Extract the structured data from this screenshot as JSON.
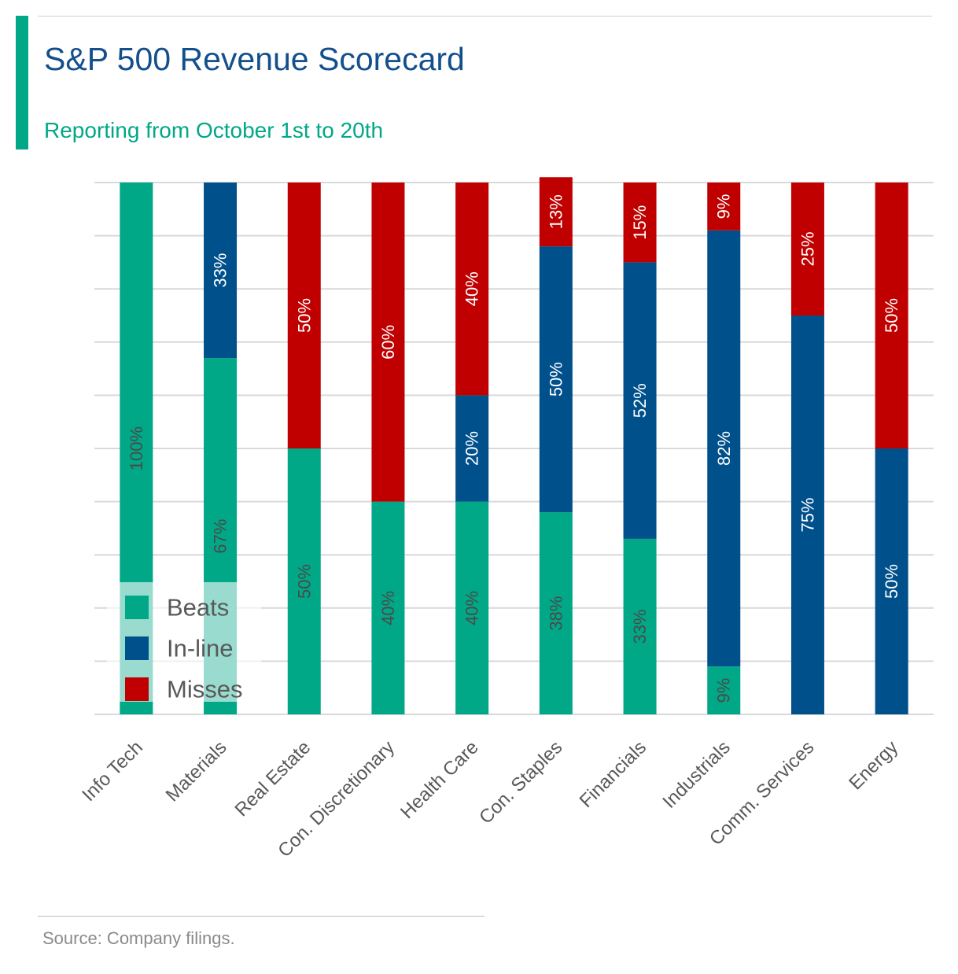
{
  "header": {
    "title": "S&P 500 Revenue Scorecard",
    "subtitle": "Reporting from October 1st to 20th"
  },
  "footer": {
    "source": "Source: Company filings."
  },
  "colors": {
    "beats": "#00a887",
    "inline": "#00508c",
    "misses": "#c00000",
    "grid": "#d9d9d9",
    "axis_text": "#595959"
  },
  "chart_data": {
    "type": "bar",
    "stacked": true,
    "categories": [
      "Info Tech",
      "Materials",
      "Real Estate",
      "Con. Discretionary",
      "Health Care",
      "Con. Staples",
      "Financials",
      "Industrials",
      "Comm. Services",
      "Energy"
    ],
    "series": [
      {
        "name": "Beats",
        "values": [
          100,
          67,
          50,
          40,
          40,
          38,
          33,
          9,
          0,
          0
        ],
        "labels": [
          "100%",
          "67%",
          "50%",
          "40%",
          "40%",
          "38%",
          "33%",
          "9%",
          "",
          ""
        ]
      },
      {
        "name": "In-line",
        "values": [
          0,
          33,
          0,
          0,
          20,
          50,
          52,
          82,
          75,
          50
        ],
        "labels": [
          "",
          "33%",
          "",
          "",
          "20%",
          "50%",
          "52%",
          "82%",
          "75%",
          "50%"
        ]
      },
      {
        "name": "Misses",
        "values": [
          0,
          0,
          50,
          60,
          40,
          13,
          15,
          9,
          25,
          50
        ],
        "labels": [
          "",
          "",
          "50%",
          "60%",
          "40%",
          "13%",
          "15%",
          "9%",
          "25%",
          "50%"
        ]
      }
    ],
    "ylim": [
      0,
      100
    ],
    "grid": true,
    "legend": "bottom-left"
  }
}
